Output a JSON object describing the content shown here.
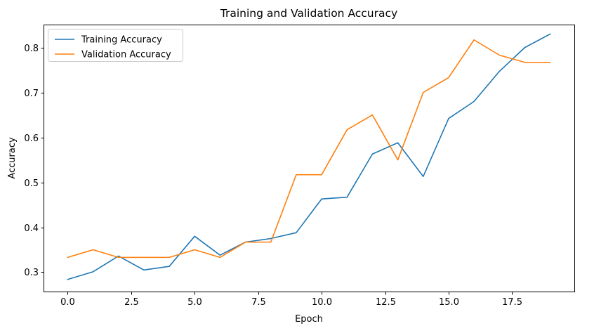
{
  "chart_data": {
    "type": "line",
    "title": "Training and Validation Accuracy",
    "xlabel": "Epoch",
    "ylabel": "Accuracy",
    "xlim": [
      -0.95,
      19.95
    ],
    "ylim": [
      0.257,
      0.851
    ],
    "xticks": [
      0.0,
      2.5,
      5.0,
      7.5,
      10.0,
      12.5,
      15.0,
      17.5
    ],
    "xtick_labels": [
      "0.0",
      "2.5",
      "5.0",
      "7.5",
      "10.0",
      "12.5",
      "15.0",
      "17.5"
    ],
    "yticks": [
      0.3,
      0.4,
      0.5,
      0.6,
      0.7,
      0.8
    ],
    "ytick_labels": [
      "0.3",
      "0.4",
      "0.5",
      "0.6",
      "0.7",
      "0.8"
    ],
    "grid": false,
    "legend_position": "upper-left",
    "x": [
      0,
      1,
      2,
      3,
      4,
      5,
      6,
      7,
      8,
      9,
      10,
      11,
      12,
      13,
      14,
      15,
      16,
      17,
      18,
      19
    ],
    "series": [
      {
        "name": "Training Accuracy",
        "color": "#1f77b4",
        "values": [
          0.284,
          0.301,
          0.336,
          0.305,
          0.313,
          0.38,
          0.338,
          0.367,
          0.375,
          0.388,
          0.463,
          0.467,
          0.563,
          0.588,
          0.513,
          0.642,
          0.68,
          0.747,
          0.8,
          0.83
        ]
      },
      {
        "name": "Validation Accuracy",
        "color": "#ff7f0e",
        "values": [
          0.333,
          0.35,
          0.333,
          0.333,
          0.333,
          0.35,
          0.333,
          0.367,
          0.367,
          0.517,
          0.517,
          0.617,
          0.65,
          0.55,
          0.7,
          0.733,
          0.817,
          0.783,
          0.767,
          0.767
        ]
      }
    ]
  }
}
